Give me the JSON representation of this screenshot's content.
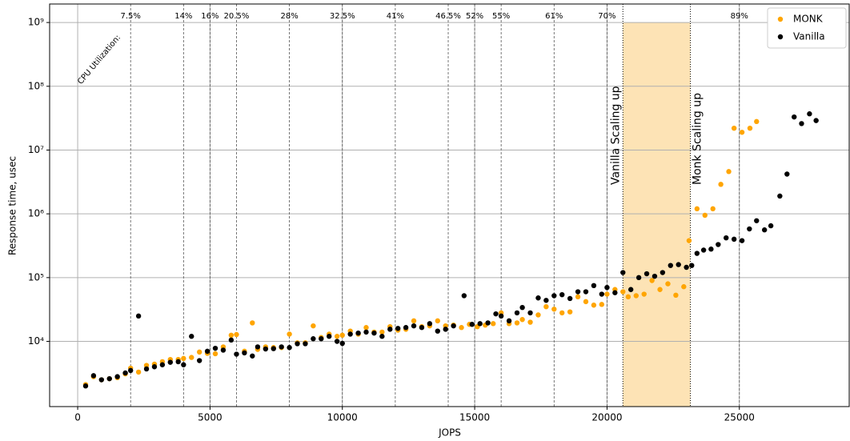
{
  "chart_data": {
    "type": "scatter",
    "xlabel": "JOPS",
    "ylabel": "Response time, usec",
    "xlim": [
      -1060,
      29150
    ],
    "ylim": [
      950,
      1950000000
    ],
    "log_y": true,
    "grid": true,
    "legend": "upper right",
    "xticks": [
      0,
      5000,
      10000,
      15000,
      20000,
      25000
    ],
    "yticks": [
      {
        "value": 10000,
        "label": "10⁴"
      },
      {
        "value": 100000,
        "label": "10⁵"
      },
      {
        "value": 1000000,
        "label": "10⁶"
      },
      {
        "value": 10000000,
        "label": "10⁷"
      },
      {
        "value": 100000000,
        "label": "10⁸"
      },
      {
        "value": 1000000000,
        "label": "10⁹"
      }
    ],
    "cpu_label": "CPU Utilization:",
    "cpu_lines": [
      {
        "x": 2000,
        "label": "7.5%"
      },
      {
        "x": 4000,
        "label": "14%"
      },
      {
        "x": 5000,
        "label": "16%"
      },
      {
        "x": 6000,
        "label": "20.5%"
      },
      {
        "x": 8000,
        "label": "28%"
      },
      {
        "x": 10000,
        "label": "32.5%"
      },
      {
        "x": 12000,
        "label": "41%"
      },
      {
        "x": 14000,
        "label": "46.5%"
      },
      {
        "x": 15000,
        "label": "52%"
      },
      {
        "x": 16000,
        "label": "55%"
      },
      {
        "x": 18000,
        "label": "61%"
      },
      {
        "x": 20000,
        "label": "70%"
      },
      {
        "x": 25000,
        "label": "89%"
      }
    ],
    "span": {
      "x0": 20600,
      "x1": 23150,
      "color": "#fde3b5",
      "label0": "Vanilla Scaling up",
      "label1": "Monk Scaling up"
    },
    "series": [
      {
        "name": "MONK",
        "color": "#ffa500",
        "x": [
          300,
          600,
          900,
          1200,
          1500,
          1800,
          2000,
          2300,
          2600,
          2900,
          3200,
          3500,
          3800,
          4000,
          4300,
          4600,
          4900,
          5200,
          5500,
          5800,
          6000,
          6300,
          6600,
          6800,
          7100,
          7400,
          7700,
          8000,
          8300,
          8600,
          8900,
          9200,
          9500,
          9800,
          10000,
          10300,
          10600,
          10900,
          11200,
          11500,
          11800,
          12100,
          12400,
          12700,
          13000,
          13300,
          13600,
          13900,
          14200,
          14500,
          14800,
          15100,
          15400,
          15700,
          16000,
          16300,
          16600,
          16800,
          17100,
          17400,
          17700,
          18000,
          18300,
          18600,
          18900,
          19200,
          19500,
          19800,
          20000,
          20300,
          20600,
          20800,
          21100,
          21400,
          21700,
          22000,
          22300,
          22600,
          22900,
          23100,
          23400,
          23700,
          24000,
          24300,
          24600,
          24800,
          25100,
          25400,
          25650
        ],
        "values": [
          2100,
          2800,
          2500,
          2600,
          2700,
          3100,
          3800,
          3300,
          4200,
          4400,
          4800,
          5200,
          5200,
          5400,
          5600,
          6800,
          6500,
          6400,
          8200,
          12500,
          12800,
          7000,
          19500,
          7500,
          8200,
          8000,
          8000,
          13000,
          9500,
          9500,
          17500,
          11500,
          13000,
          12000,
          12500,
          14500,
          13000,
          16500,
          14000,
          14000,
          17000,
          15000,
          15500,
          21000,
          17000,
          17500,
          21000,
          17500,
          18000,
          16500,
          18500,
          17000,
          18000,
          19000,
          28000,
          19000,
          19500,
          22000,
          20000,
          26000,
          35000,
          32000,
          28000,
          29000,
          50000,
          42000,
          37000,
          38000,
          55000,
          65000,
          60000,
          50000,
          52000,
          55000,
          90000,
          65000,
          80000,
          53000,
          72000,
          380000,
          1200000,
          950000,
          1200000,
          2900000,
          4600000,
          22000000,
          19000000,
          22000000,
          28000000
        ]
      },
      {
        "name": "Vanilla",
        "color": "#000000",
        "x": [
          300,
          600,
          900,
          1200,
          1500,
          1800,
          2000,
          2300,
          2600,
          2900,
          3200,
          3500,
          3800,
          4000,
          4300,
          4600,
          4900,
          5200,
          5500,
          5800,
          6000,
          6300,
          6600,
          6800,
          7100,
          7400,
          7700,
          8000,
          8300,
          8600,
          8900,
          9200,
          9500,
          9800,
          10000,
          10300,
          10600,
          10900,
          11200,
          11500,
          11800,
          12100,
          12400,
          12700,
          13000,
          13300,
          13600,
          13900,
          14200,
          14600,
          14900,
          15200,
          15500,
          15800,
          16000,
          16300,
          16600,
          16800,
          17100,
          17400,
          17700,
          18000,
          18300,
          18600,
          18900,
          19200,
          19500,
          19800,
          20000,
          20300,
          20600,
          20900,
          21200,
          21500,
          21800,
          22100,
          22400,
          22700,
          23000,
          23200,
          23400,
          23650,
          23930,
          24200,
          24500,
          24800,
          25100,
          25380,
          25650,
          25950,
          26190,
          26530,
          26800,
          27070,
          27350,
          27650,
          27900
        ],
        "values": [
          2000,
          2900,
          2500,
          2600,
          2800,
          3200,
          3500,
          25000,
          3700,
          4000,
          4300,
          4700,
          4800,
          4300,
          12000,
          5000,
          7000,
          7800,
          7300,
          10500,
          6300,
          6600,
          5900,
          8200,
          7600,
          7700,
          8200,
          8000,
          9200,
          9200,
          11000,
          11000,
          12000,
          10000,
          9300,
          13000,
          13500,
          14000,
          13500,
          12000,
          15500,
          16000,
          16500,
          17500,
          16500,
          19000,
          14500,
          15500,
          17500,
          52000,
          18500,
          19000,
          19500,
          27000,
          25000,
          21000,
          28000,
          34000,
          28000,
          48000,
          44000,
          52000,
          54000,
          47000,
          60000,
          60000,
          75000,
          55000,
          70000,
          58000,
          120000,
          65000,
          100000,
          115000,
          105000,
          120000,
          155000,
          160000,
          145000,
          155000,
          240000,
          270000,
          280000,
          330000,
          420000,
          400000,
          380000,
          580000,
          780000,
          560000,
          650000,
          1900000,
          4200000,
          33000000,
          26000000,
          37000000,
          29000000
        ]
      }
    ]
  }
}
